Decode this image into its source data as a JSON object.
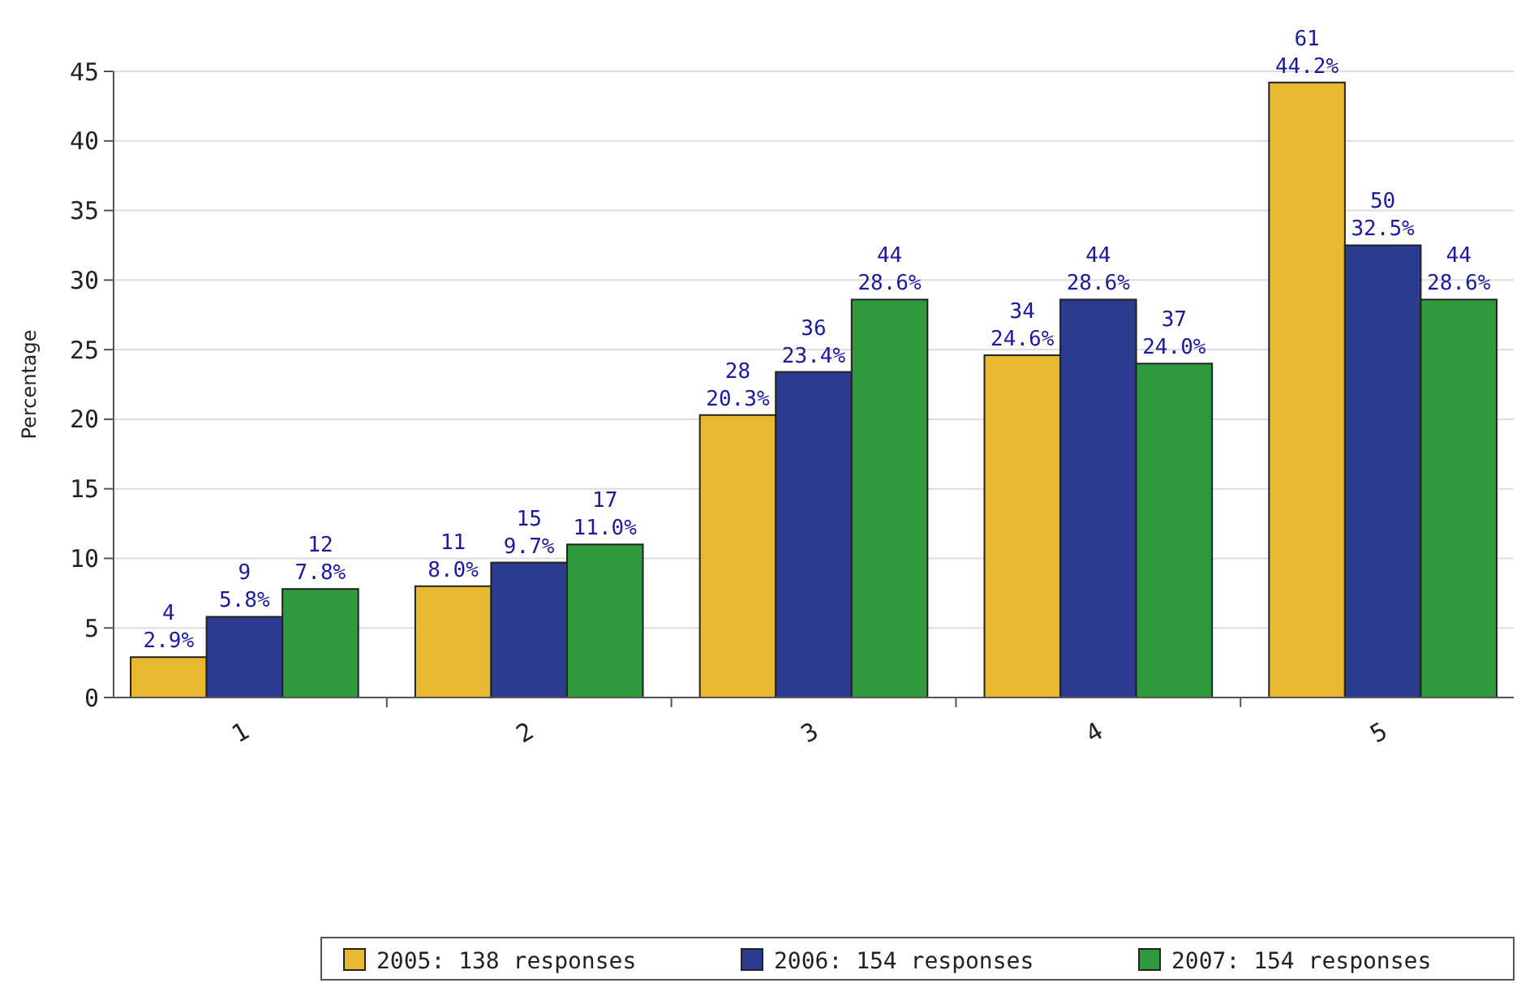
{
  "chart_data": {
    "type": "bar",
    "ylabel": "Percentage",
    "categories": [
      "1",
      "2",
      "3",
      "4",
      "5"
    ],
    "series": [
      {
        "name": "2005: 138 responses",
        "color": "#e8b830",
        "values": [
          2.9,
          8.0,
          20.3,
          24.6,
          44.2
        ],
        "value_labels": [
          "4\n2.9%",
          "11\n8.0%",
          "28\n20.3%",
          "34\n24.6%",
          "61\n44.2%"
        ]
      },
      {
        "name": "2006: 154 responses",
        "color": "#2b3b8f",
        "values": [
          5.8,
          9.7,
          23.4,
          28.6,
          32.5
        ],
        "value_labels": [
          "9\n5.8%",
          "15\n9.7%",
          "36\n23.4%",
          "44\n28.6%",
          "50\n32.5%"
        ]
      },
      {
        "name": "2007: 154 responses",
        "color": "#2f9a3c",
        "values": [
          7.8,
          11.0,
          28.6,
          24.0,
          28.6
        ],
        "value_labels": [
          "12\n7.8%",
          "17\n11.0%",
          "44\n28.6%",
          "37\n24.0%",
          "44\n28.6%"
        ]
      }
    ],
    "ylim": [
      0,
      45
    ],
    "yticks": [
      0,
      5,
      10,
      15,
      20,
      25,
      30,
      35,
      40,
      45
    ],
    "grid": "y",
    "legend": "bottom right"
  }
}
